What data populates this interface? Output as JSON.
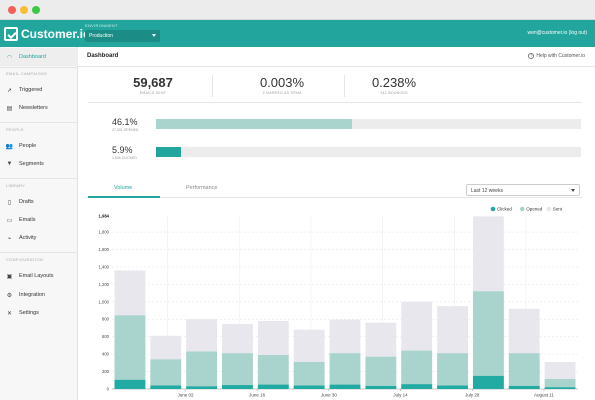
{
  "header": {
    "logo_text": "Customer.io",
    "env_label": "ENVIRONMENT",
    "env_value": "Production",
    "account_text": "wen@customer.io (log out)"
  },
  "sidebar": {
    "dashboard": "Dashboard",
    "section_campaigns": "EMAIL CAMPAIGNS",
    "triggered": "Triggered",
    "newsletters": "Newsletters",
    "section_people": "PEOPLE",
    "people": "People",
    "segments": "Segments",
    "section_library": "LIBRARY",
    "drafts": "Drafts",
    "emails": "Emails",
    "activity": "Activity",
    "section_config": "CONFIGURATION",
    "email_layouts": "Email Layouts",
    "integration": "Integration",
    "settings": "Settings"
  },
  "page": {
    "title": "Dashboard",
    "help": "Help with Customer.io"
  },
  "stats": [
    {
      "value": "59,687",
      "label": "EMAILS SENT"
    },
    {
      "value": "0.003%",
      "label": "2 MARKED AS SPAM"
    },
    {
      "value": "0.238%",
      "label": "142 BOUNCED"
    }
  ],
  "rates": [
    {
      "value": "46.1%",
      "label": "27,531 OPENED",
      "fraction": 0.461,
      "color": "#a9d3cd"
    },
    {
      "value": "5.9%",
      "label": "3,536 CLICKED",
      "fraction": 0.059,
      "color": "#22a59d"
    }
  ],
  "tabs": {
    "volume": "Volume",
    "performance": "Performance"
  },
  "range_select": "Last 12 weeks",
  "chart_data": {
    "type": "bar",
    "stacked": "overlay",
    "series": [
      {
        "name": "Clicked",
        "color": "#22aba2",
        "values": [
          105,
          40,
          30,
          45,
          50,
          40,
          50,
          35,
          55,
          40,
          150,
          35,
          20
        ]
      },
      {
        "name": "Opened",
        "color": "#a9d3cd",
        "values": [
          845,
          340,
          430,
          410,
          390,
          310,
          410,
          370,
          440,
          410,
          1120,
          410,
          115
        ]
      },
      {
        "name": "Sent",
        "color": "#e8e7ed",
        "values": [
          1360,
          610,
          800,
          745,
          780,
          680,
          795,
          760,
          1000,
          950,
          1980,
          920,
          310
        ]
      }
    ],
    "x_tick_labels": [
      "June 02",
      "June 16",
      "June 30",
      "July 14",
      "July 28",
      "August 11"
    ],
    "y_ticks": [
      0,
      200,
      400,
      600,
      800,
      1000,
      1200,
      1400,
      1600,
      1800
    ],
    "y_tick_labels": [
      "0",
      "200",
      "400",
      "600",
      "800",
      "1,000",
      "1,200",
      "1,400",
      "1,600",
      "1,800"
    ],
    "y_max_label": "1,984",
    "ylim": [
      0,
      1984
    ],
    "legend_position": "top-right",
    "grid": true
  }
}
